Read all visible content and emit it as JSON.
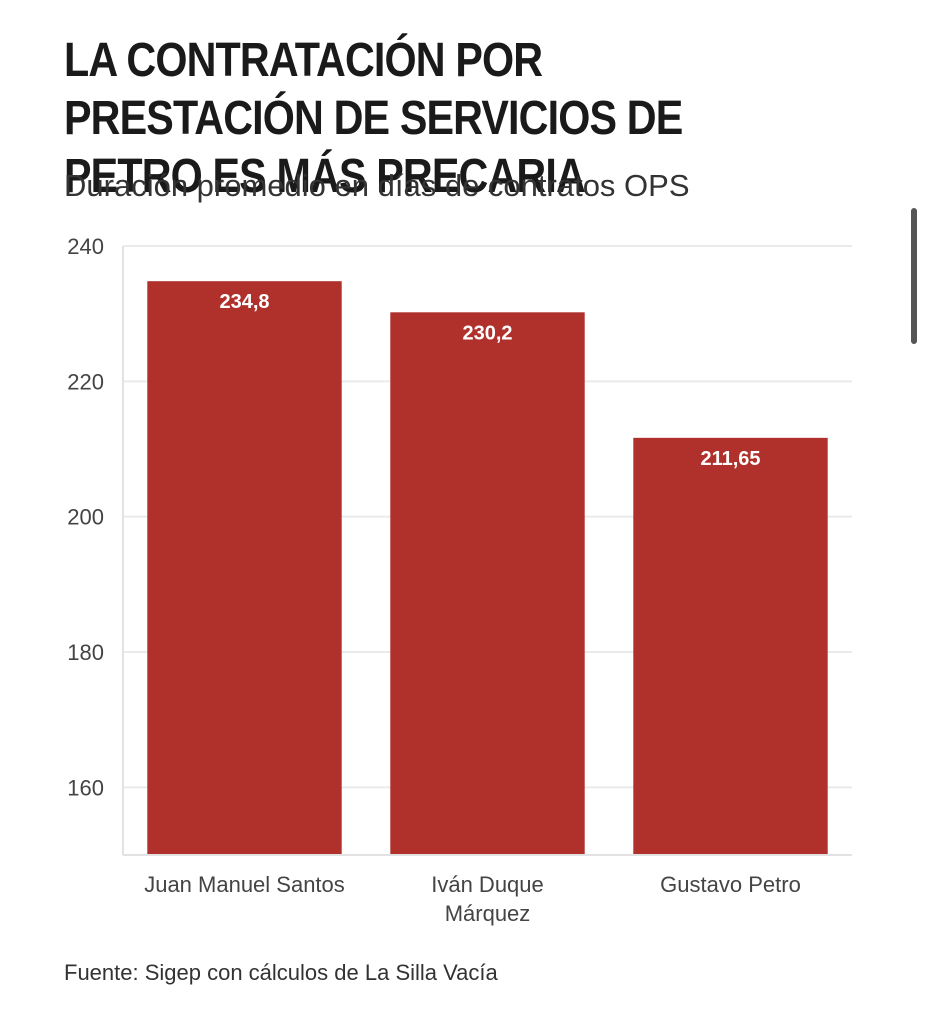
{
  "chart_data": {
    "type": "bar",
    "title": "LA CONTRATACIÓN POR PRESTACIÓN DE SERVICIOS DE PETRO ES MÁS PRECARIA",
    "subtitle": "Duración promedio en días de contratos OPS",
    "categories": [
      [
        "Juan Manuel Santos"
      ],
      [
        "Iván Duque",
        "Márquez"
      ],
      [
        "Gustavo Petro"
      ]
    ],
    "values": [
      234.8,
      230.2,
      211.65
    ],
    "data_labels": [
      "234,8",
      "230,2",
      "211,65"
    ],
    "y_ticks": [
      160,
      180,
      200,
      220,
      240
    ],
    "y_tick_labels": [
      "160",
      "180",
      "200",
      "220",
      "240"
    ],
    "ylim": [
      150,
      240
    ],
    "xlabel": "",
    "ylabel": "",
    "grid": true,
    "bar_color": "#b0302b",
    "source": "Fuente: Sigep con cálculos de La Silla Vacía"
  }
}
